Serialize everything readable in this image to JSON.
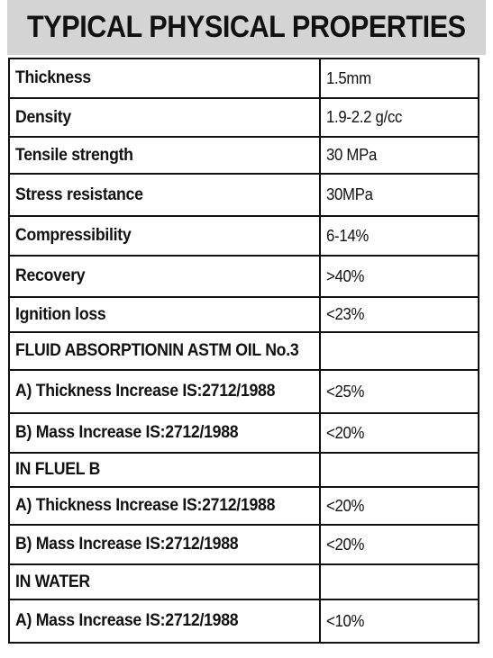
{
  "title": "TYPICAL PHYSICAL PROPERTIES",
  "rows": [
    {
      "property": "Thickness",
      "value": "1.5mm"
    },
    {
      "property": "Density",
      "value": "1.9-2.2 g/cc"
    },
    {
      "property": "Tensile strength",
      "value": "30 MPa"
    },
    {
      "property": "Stress resistance",
      "value": "30MPa"
    },
    {
      "property": "Compressibility",
      "value": "6-14%"
    },
    {
      "property": "Recovery",
      "value": ">40%"
    },
    {
      "property": "Ignition loss",
      "value": "<23%"
    },
    {
      "property": "FLUID ABSORPTIONIN ASTM OIL No.3",
      "value": ""
    },
    {
      "property": "A) Thickness Increase IS:2712/1988",
      "value": "<25%"
    },
    {
      "property": "B) Mass Increase IS:2712/1988",
      "value": "<20%"
    },
    {
      "property": "IN FLUEL B",
      "value": ""
    },
    {
      "property": "A) Thickness Increase IS:2712/1988",
      "value": "<20%"
    },
    {
      "property": "B) Mass Increase IS:2712/1988",
      "value": "<20%"
    },
    {
      "property": "IN WATER",
      "value": ""
    },
    {
      "property": "A) Mass Increase IS:2712/1988",
      "value": "<10%"
    }
  ]
}
